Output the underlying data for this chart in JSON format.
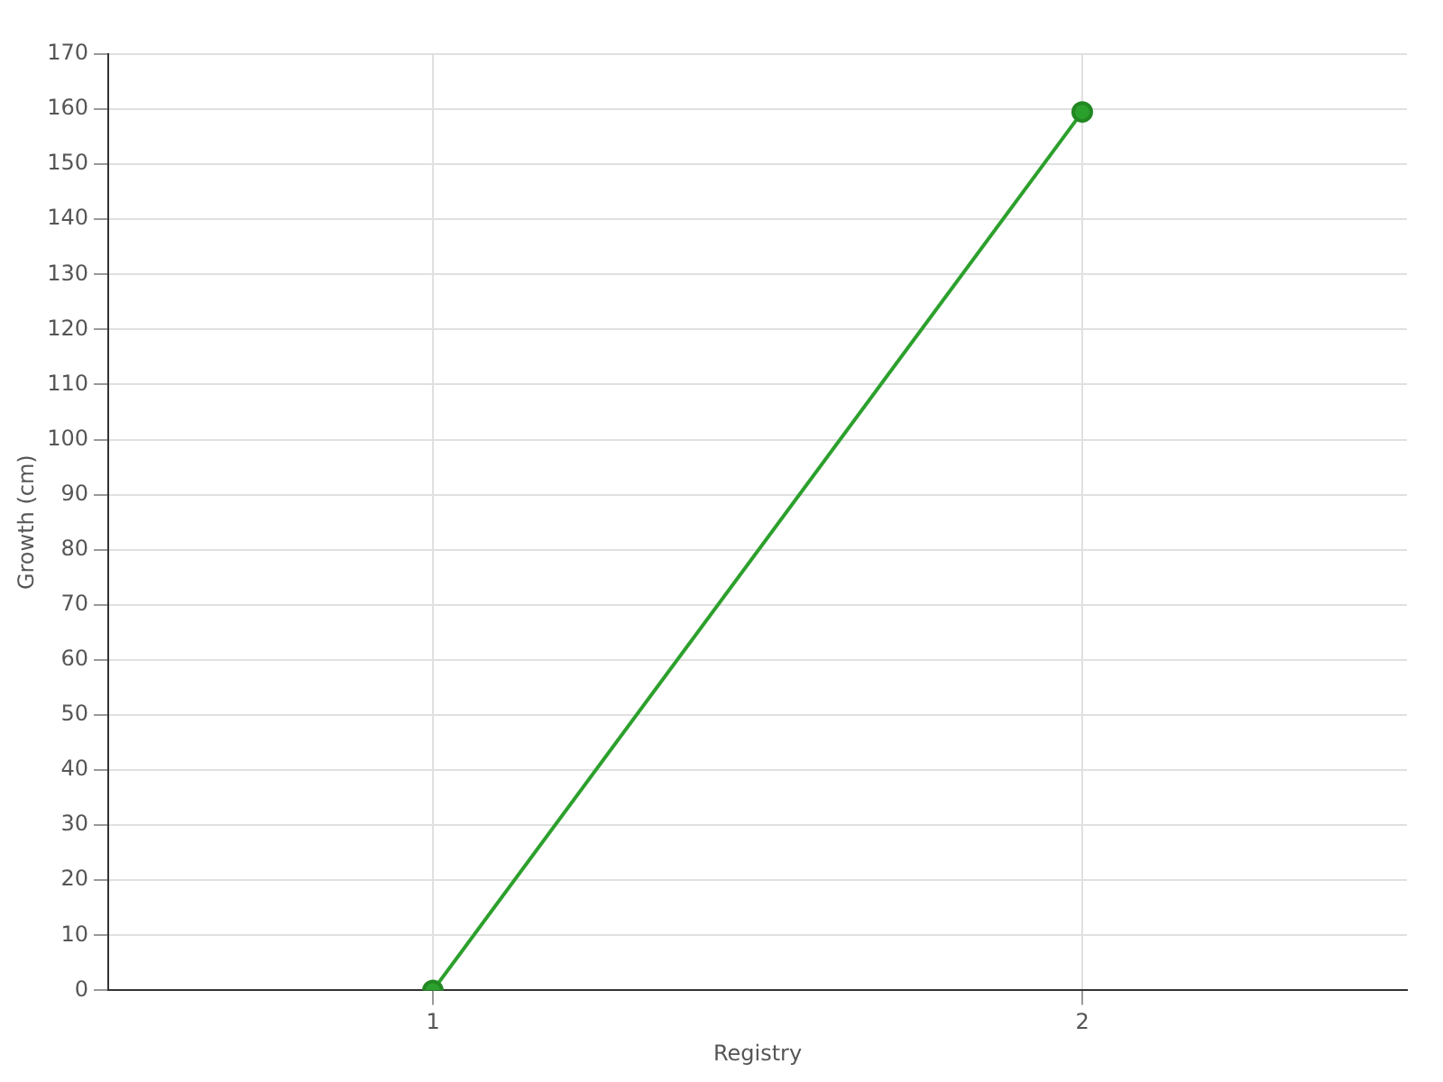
{
  "chart_data": {
    "type": "line",
    "xlabel": "Registry",
    "ylabel": "Growth (cm)",
    "categories": [
      "1",
      "2"
    ],
    "series": [
      {
        "color": "#2ca02c",
        "values": [
          0,
          159.5
        ]
      }
    ],
    "ylim": [
      0,
      170
    ],
    "yticks": [
      0,
      10,
      20,
      30,
      40,
      50,
      60,
      70,
      80,
      90,
      100,
      110,
      120,
      130,
      140,
      150,
      160,
      170
    ],
    "grid": true,
    "marker": "circle",
    "line_style": "solid"
  }
}
